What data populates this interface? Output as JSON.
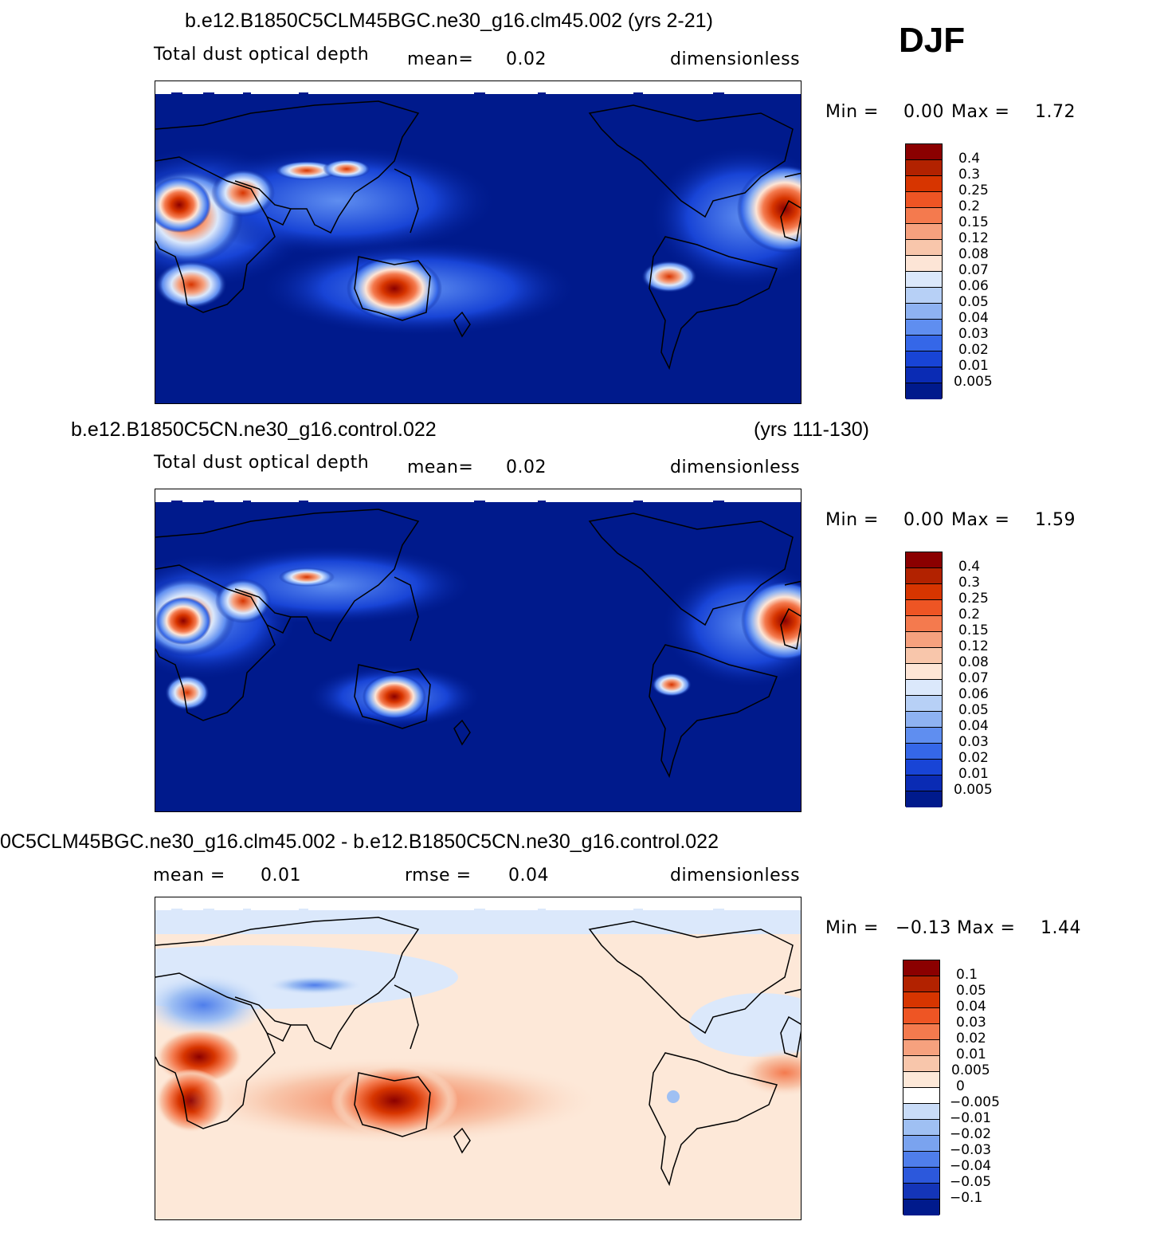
{
  "season": "DJF",
  "panels": [
    {
      "title_main": "b.e12.B1850C5CLM45BGC.ne30_g16.clm45.002 (yrs 2-21)",
      "title_right": "",
      "variable": "Total dust optical depth",
      "stat1_label": "mean=",
      "stat1_value": "0.02",
      "stat2_label": "",
      "stat2_value": "",
      "units": "dimensionless",
      "minmax": {
        "min_label": "Min =",
        "min": "0.00",
        "max_label": "Max =",
        "max": "1.72"
      },
      "colorbar": {
        "labels": [
          "0.4",
          "0.3",
          "0.25",
          "0.2",
          "0.15",
          "0.12",
          "0.08",
          "0.07",
          "0.06",
          "0.05",
          "0.04",
          "0.03",
          "0.02",
          "0.01",
          "0.005"
        ],
        "colors": [
          "#8b0000",
          "#b22200",
          "#d73500",
          "#ee5524",
          "#f47a4e",
          "#f6a17e",
          "#f8c6ab",
          "#fde5d6",
          "#dbe8fb",
          "#b7d0f6",
          "#8eb2f2",
          "#5f8ef0",
          "#3567e8",
          "#1844d6",
          "#0a2bb4",
          "#001a8c"
        ]
      }
    },
    {
      "title_main": "b.e12.B1850C5CN.ne30_g16.control.022",
      "title_right": "(yrs 111-130)",
      "variable": "Total dust optical depth",
      "stat1_label": "mean=",
      "stat1_value": "0.02",
      "stat2_label": "",
      "stat2_value": "",
      "units": "dimensionless",
      "minmax": {
        "min_label": "Min =",
        "min": "0.00",
        "max_label": "Max =",
        "max": "1.59"
      },
      "colorbar": {
        "labels": [
          "0.4",
          "0.3",
          "0.25",
          "0.2",
          "0.15",
          "0.12",
          "0.08",
          "0.07",
          "0.06",
          "0.05",
          "0.04",
          "0.03",
          "0.02",
          "0.01",
          "0.005"
        ],
        "colors": [
          "#8b0000",
          "#b22200",
          "#d73500",
          "#ee5524",
          "#f47a4e",
          "#f6a17e",
          "#f8c6ab",
          "#fde5d6",
          "#dbe8fb",
          "#b7d0f6",
          "#8eb2f2",
          "#5f8ef0",
          "#3567e8",
          "#1844d6",
          "#0a2bb4",
          "#001a8c"
        ]
      }
    },
    {
      "title_main": "0C5CLM45BGC.ne30_g16.clm45.002 - b.e12.B1850C5CN.ne30_g16.control.022",
      "title_right": "",
      "variable": "",
      "stat1_label": "mean =",
      "stat1_value": "0.01",
      "stat2_label": "rmse =",
      "stat2_value": "0.04",
      "units": "dimensionless",
      "minmax": {
        "min_label": "Min =",
        "min": "−0.13",
        "max_label": "Max =",
        "max": "1.44"
      },
      "colorbar": {
        "labels": [
          "0.1",
          "0.05",
          "0.04",
          "0.03",
          "0.02",
          "0.01",
          "0.005",
          "0",
          "−0.005",
          "−0.01",
          "−0.02",
          "−0.03",
          "−0.04",
          "−0.05",
          "−0.1"
        ],
        "colors": [
          "#8b0000",
          "#b22200",
          "#d73500",
          "#ee5524",
          "#f47a4e",
          "#f6a17e",
          "#f8c6ab",
          "#fde8d8",
          "#ffffff",
          "#c9dcf8",
          "#9fc0f3",
          "#7aa3ef",
          "#4f7eeb",
          "#2c58dc",
          "#1435b8",
          "#001a8c"
        ]
      }
    }
  ]
}
